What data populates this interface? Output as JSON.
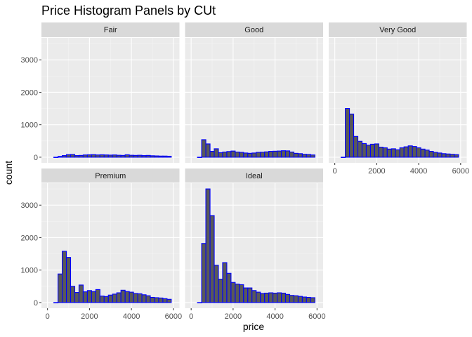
{
  "chart_data": {
    "type": "bar",
    "title": "Price Histogram Panels by CUt",
    "xlabel": "price",
    "ylabel": "count",
    "xlim": [
      0,
      6000
    ],
    "ylim": [
      0,
      3500
    ],
    "x_ticks": [
      0,
      2000,
      4000,
      6000
    ],
    "y_ticks": [
      0,
      1000,
      2000,
      3000
    ],
    "bin_width": 200,
    "bin_starts": [
      300,
      500,
      700,
      900,
      1100,
      1300,
      1500,
      1700,
      1900,
      2100,
      2300,
      2500,
      2700,
      2900,
      3100,
      3300,
      3500,
      3700,
      3900,
      4100,
      4300,
      4500,
      4700,
      4900,
      5100,
      5300,
      5500,
      5700
    ],
    "bar_fill": "#595959",
    "bar_outline": "#0000ff",
    "panel_background": "#ebebeb",
    "strip_background": "#d9d9d9",
    "grid": true,
    "facets": [
      {
        "name": "Fair",
        "values": [
          0,
          25,
          50,
          80,
          85,
          50,
          55,
          70,
          75,
          80,
          70,
          75,
          70,
          65,
          70,
          60,
          55,
          75,
          60,
          55,
          60,
          50,
          55,
          45,
          40,
          35,
          35,
          30
        ]
      },
      {
        "name": "Good",
        "values": [
          0,
          540,
          410,
          180,
          260,
          140,
          160,
          175,
          190,
          160,
          150,
          130,
          120,
          130,
          150,
          155,
          165,
          180,
          185,
          190,
          200,
          195,
          160,
          120,
          110,
          90,
          85,
          70
        ]
      },
      {
        "name": "Very Good",
        "values": [
          0,
          1500,
          1330,
          640,
          490,
          420,
          370,
          400,
          410,
          310,
          290,
          250,
          260,
          230,
          290,
          320,
          350,
          330,
          290,
          250,
          220,
          180,
          150,
          130,
          110,
          100,
          90,
          80
        ]
      },
      {
        "name": "Premium",
        "values": [
          0,
          880,
          1580,
          1390,
          500,
          310,
          540,
          330,
          370,
          340,
          400,
          200,
          185,
          230,
          260,
          300,
          380,
          340,
          320,
          280,
          270,
          240,
          210,
          160,
          150,
          140,
          120,
          100
        ]
      },
      {
        "name": "Ideal",
        "values": [
          0,
          1820,
          3500,
          2680,
          1150,
          720,
          1230,
          900,
          620,
          570,
          550,
          450,
          450,
          370,
          320,
          280,
          290,
          300,
          290,
          300,
          290,
          250,
          220,
          210,
          190,
          170,
          160,
          150
        ]
      }
    ]
  }
}
